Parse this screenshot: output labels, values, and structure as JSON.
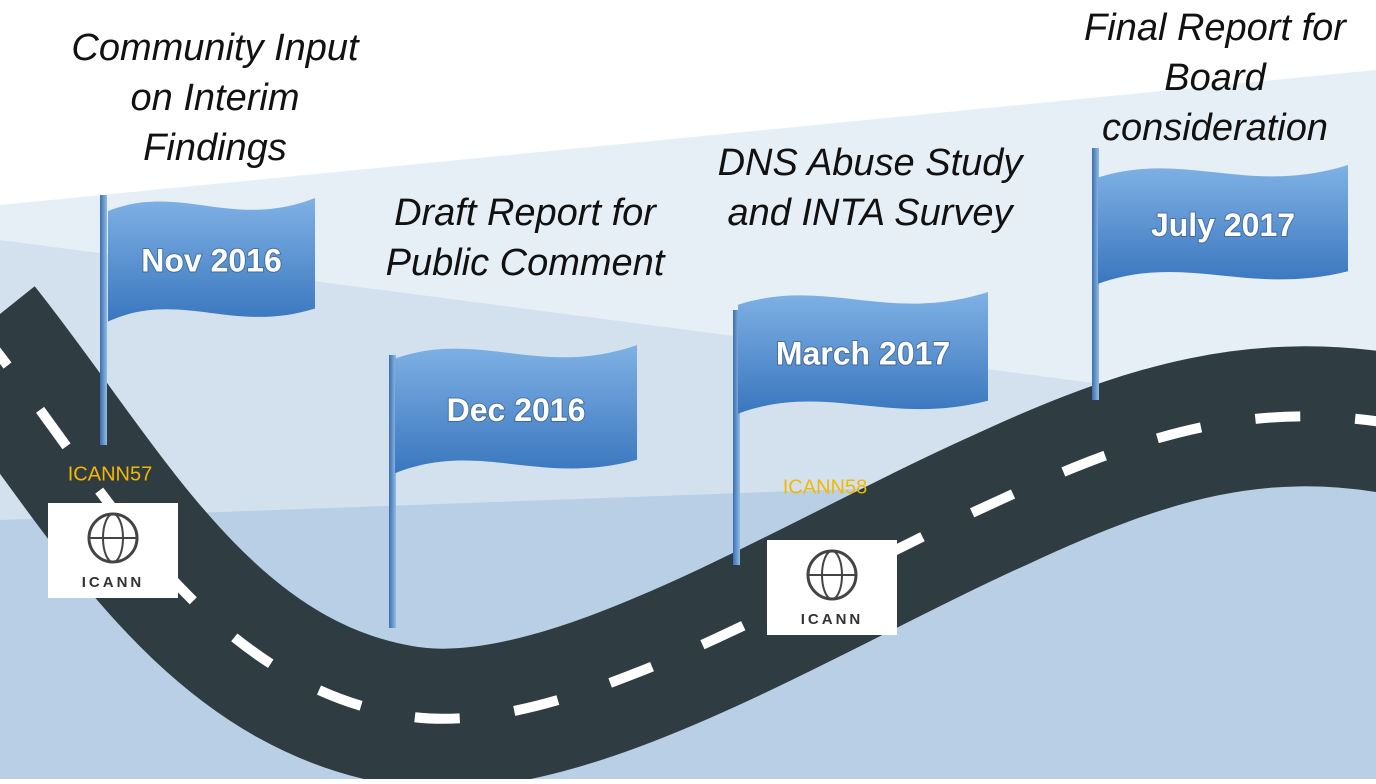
{
  "milestones": [
    {
      "label": [
        "Community Input",
        "on Interim",
        "Findings"
      ],
      "date": "Nov 2016"
    },
    {
      "label": [
        "Draft Report for",
        "Public Comment"
      ],
      "date": "Dec 2016"
    },
    {
      "label": [
        "DNS Abuse Study",
        "and INTA Survey"
      ],
      "date": "March 2017"
    },
    {
      "label": [
        "Final Report for",
        "Board",
        "consideration"
      ],
      "date": "July 2017"
    }
  ],
  "meetings": [
    {
      "name": "ICANN57",
      "logo": "ICANN"
    },
    {
      "name": "ICANN58",
      "logo": "ICANN"
    }
  ]
}
